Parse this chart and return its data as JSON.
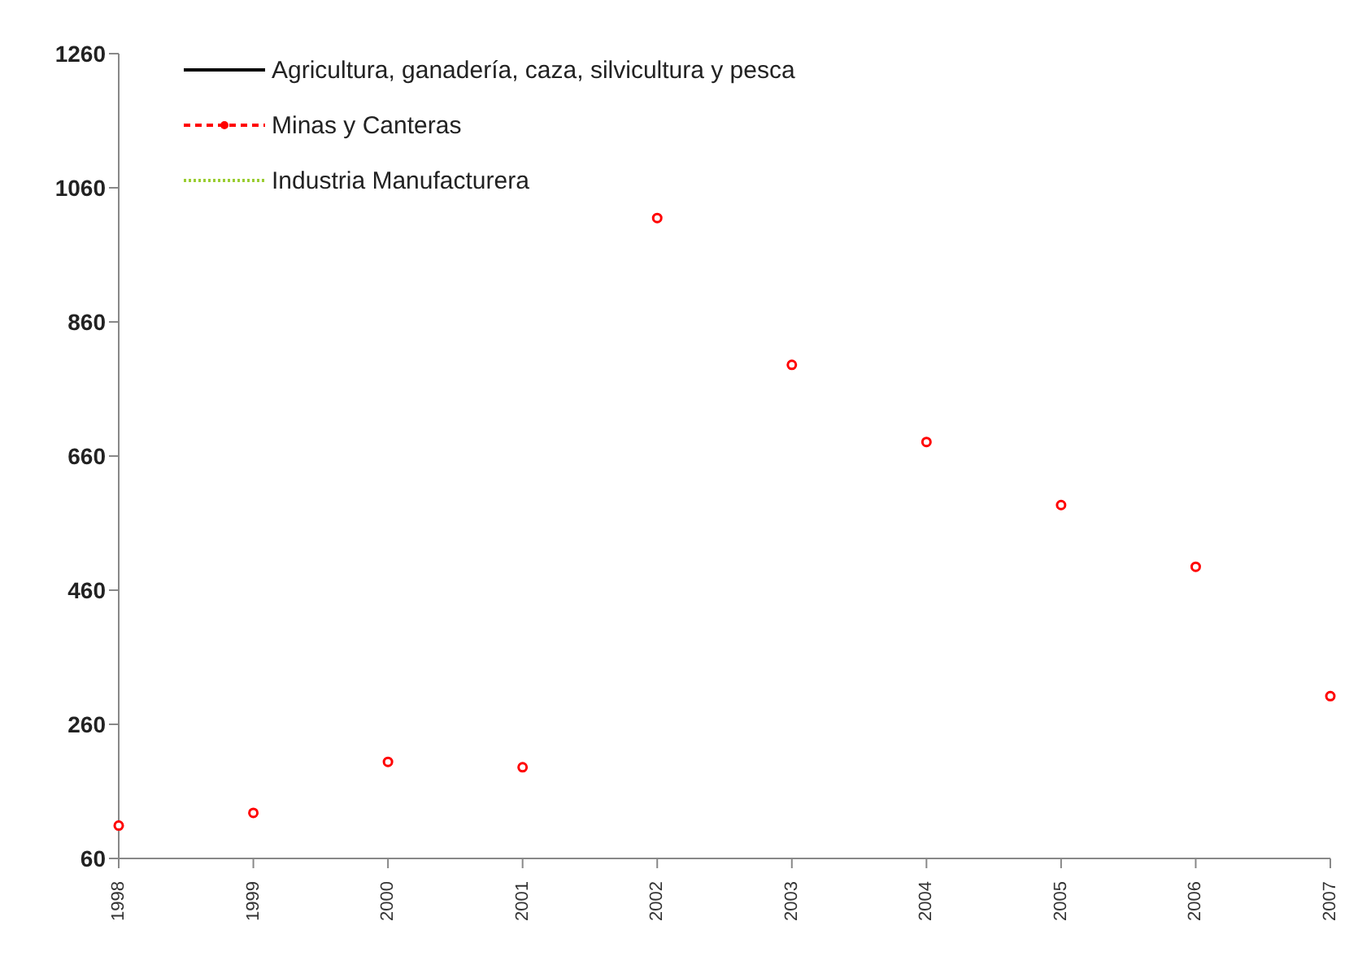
{
  "chart_data": {
    "type": "scatter",
    "categories": [
      "1998",
      "1999",
      "2000",
      "2001",
      "2002",
      "2003",
      "2004",
      "2005",
      "2006",
      "2007"
    ],
    "series": [
      {
        "name": "Agricultura, ganadería, caza, silvicultura y pesca",
        "color": "#000000",
        "line_style": "solid",
        "values": [
          null,
          null,
          null,
          null,
          null,
          null,
          null,
          null,
          null,
          null
        ]
      },
      {
        "name": "Minas y Canteras",
        "color": "#ff0000",
        "line_style": "dashed",
        "marker": "circle",
        "values": [
          109,
          128,
          204,
          196,
          1015,
          796,
          681,
          587,
          495,
          302
        ]
      },
      {
        "name": "Industria Manufacturera",
        "color": "#9acd32",
        "line_style": "dotted",
        "values": [
          null,
          null,
          null,
          null,
          null,
          null,
          null,
          null,
          null,
          null
        ]
      }
    ],
    "ylim": [
      60,
      1260
    ],
    "yticks": [
      60,
      260,
      460,
      660,
      860,
      1060,
      1260
    ],
    "grid": false,
    "legend": "top left"
  }
}
